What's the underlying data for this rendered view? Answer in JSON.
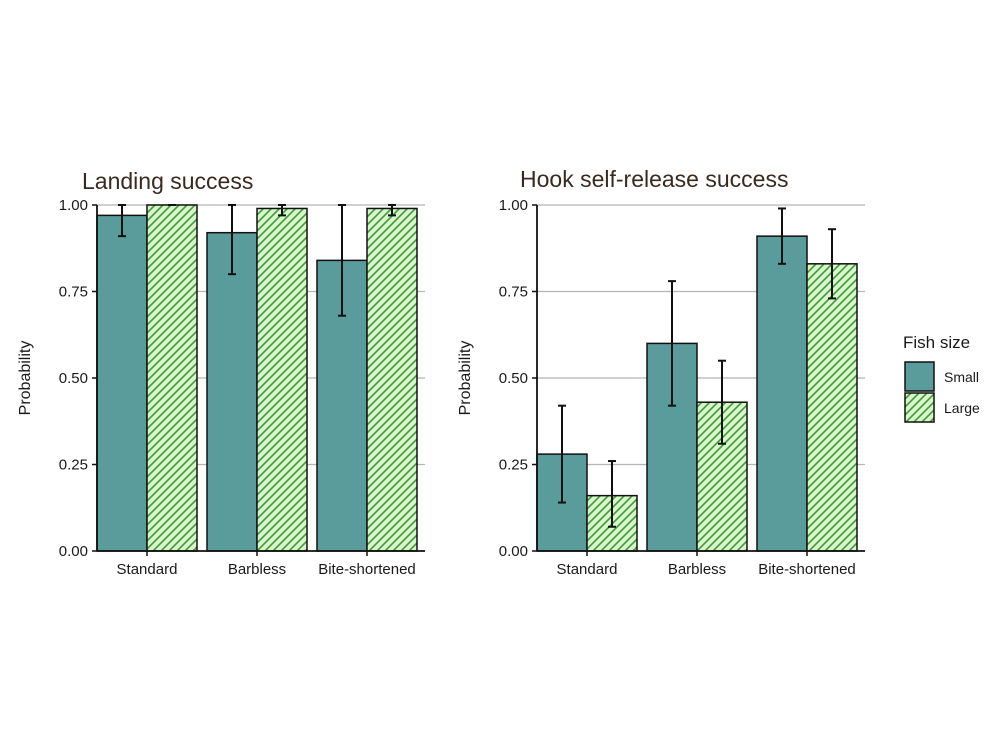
{
  "colors": {
    "small_fill": "#5a9b9b",
    "large_fill": "#d9f5c9",
    "large_hatch": "#3f9a3f",
    "bar_stroke": "#111111",
    "grid": "#b5b5b5"
  },
  "legend": {
    "title": "Fish size",
    "placement": "right",
    "items": [
      {
        "label": "Small",
        "pattern": "solid",
        "color": "#5a9b9b"
      },
      {
        "label": "Large",
        "pattern": "hatched",
        "color": "#d9f5c9"
      }
    ]
  },
  "chart_data": [
    {
      "type": "bar",
      "title": "Landing success",
      "xlabel": "",
      "ylabel": "Probability",
      "ylim": [
        0,
        1
      ],
      "yticks": [
        0,
        0.25,
        0.5,
        0.75,
        1
      ],
      "ytick_labels": [
        "0.00",
        "0.25",
        "0.50",
        "0.75",
        "1.00"
      ],
      "grid": "horizontal",
      "categories": [
        "Standard",
        "Barbless",
        "Bite-shortened"
      ],
      "series": [
        {
          "name": "Small",
          "values": [
            0.97,
            0.92,
            0.84
          ],
          "err_low": [
            0.91,
            0.8,
            0.68
          ],
          "err_high": [
            1.0,
            1.0,
            1.0
          ]
        },
        {
          "name": "Large",
          "values": [
            1.0,
            0.99,
            0.99
          ],
          "err_low": [
            1.0,
            0.97,
            0.97
          ],
          "err_high": [
            1.0,
            1.0,
            1.0
          ]
        }
      ]
    },
    {
      "type": "bar",
      "title": "Hook self-release success",
      "xlabel": "",
      "ylabel": "Probability",
      "ylim": [
        0,
        1
      ],
      "yticks": [
        0,
        0.25,
        0.5,
        0.75,
        1
      ],
      "ytick_labels": [
        "0.00",
        "0.25",
        "0.50",
        "0.75",
        "1.00"
      ],
      "grid": "horizontal",
      "categories": [
        "Standard",
        "Barbless",
        "Bite-shortened"
      ],
      "series": [
        {
          "name": "Small",
          "values": [
            0.28,
            0.6,
            0.91
          ],
          "err_low": [
            0.14,
            0.42,
            0.83
          ],
          "err_high": [
            0.42,
            0.78,
            0.99
          ]
        },
        {
          "name": "Large",
          "values": [
            0.16,
            0.43,
            0.83
          ],
          "err_low": [
            0.07,
            0.31,
            0.73
          ],
          "err_high": [
            0.26,
            0.55,
            0.93
          ]
        }
      ]
    }
  ]
}
